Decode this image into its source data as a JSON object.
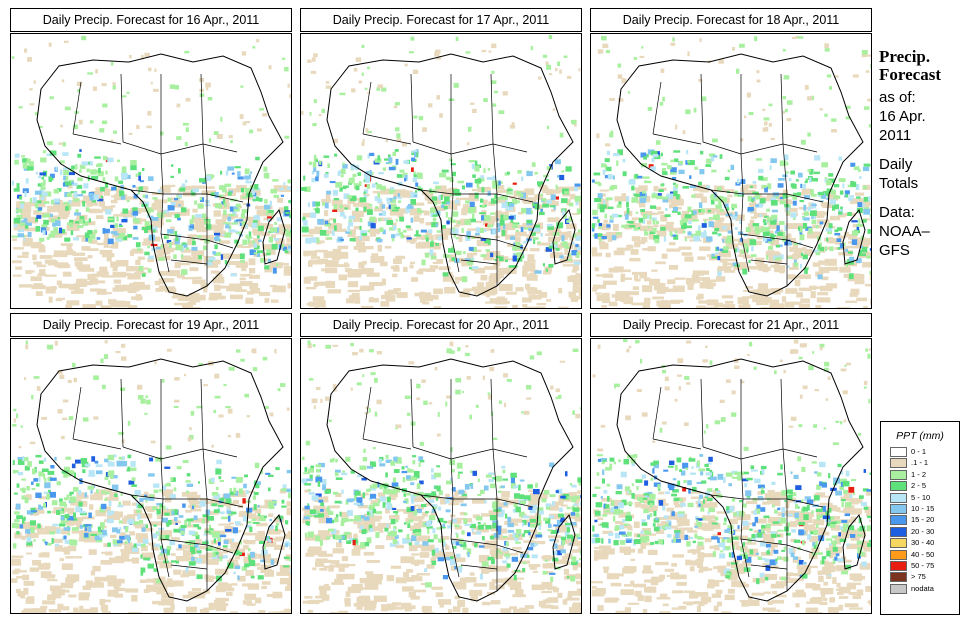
{
  "panels": [
    {
      "title": "Daily Precip. Forecast for  16 Apr., 2011"
    },
    {
      "title": "Daily Precip. Forecast for  17 Apr., 2011"
    },
    {
      "title": "Daily Precip. Forecast for  18 Apr., 2011"
    },
    {
      "title": "Daily Precip. Forecast for  19 Apr., 2011"
    },
    {
      "title": "Daily Precip. Forecast for  20 Apr., 2011"
    },
    {
      "title": "Daily Precip. Forecast for  21 Apr., 2011"
    }
  ],
  "side": {
    "heading1": "Precip.",
    "heading2": "Forecast",
    "asof": "as of:",
    "date1": "16 Apr.",
    "date2": "2011",
    "totals1": "Daily",
    "totals2": "Totals",
    "data1": "Data:",
    "data2": "NOAA–",
    "data3": "GFS"
  },
  "legend": {
    "title": "PPT (mm)",
    "items": [
      {
        "label": "0 - 1",
        "color": "#ffffff"
      },
      {
        "label": ".1 - 1",
        "color": "#e8d8bc"
      },
      {
        "label": "1 - 2",
        "color": "#a8f0a0"
      },
      {
        "label": "2 - 5",
        "color": "#5ee07a"
      },
      {
        "label": "5 - 10",
        "color": "#b8e6f6"
      },
      {
        "label": "10 - 15",
        "color": "#84c8f0"
      },
      {
        "label": "15 - 20",
        "color": "#4a98ee"
      },
      {
        "label": "20 - 30",
        "color": "#1e5ee0"
      },
      {
        "label": "30 - 40",
        "color": "#f6d860"
      },
      {
        "label": "40 - 50",
        "color": "#ff9a1a"
      },
      {
        "label": "50 - 75",
        "color": "#e81e10"
      },
      {
        "label": "> 75",
        "color": "#7a3420"
      },
      {
        "label": "nodata",
        "color": "#c8c8c8"
      }
    ]
  }
}
